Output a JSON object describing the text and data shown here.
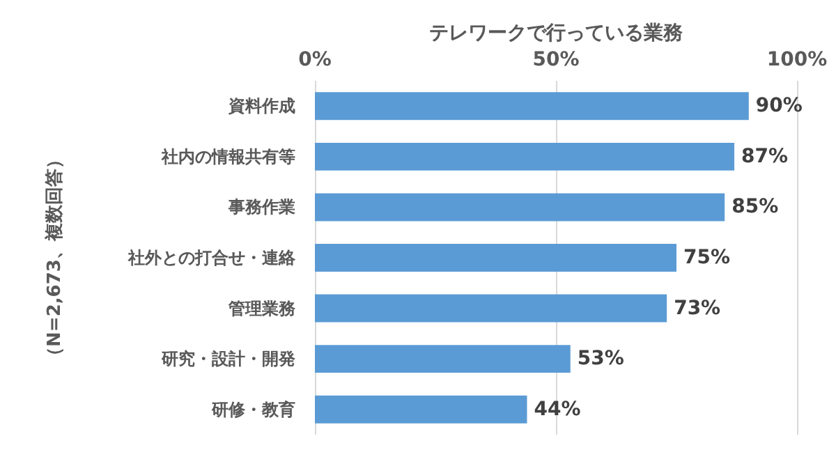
{
  "chart_data": {
    "type": "bar",
    "orientation": "horizontal",
    "xlabel": "テレワークで行っている業務",
    "ylabel": "（N=2,673、複数回答）",
    "categories": [
      "資料作成",
      "社内の情報共有等",
      "事務作業",
      "社外との打合せ・連絡",
      "管理業務",
      "研究・設計・開発",
      "研修・教育"
    ],
    "values": [
      90,
      87,
      85,
      75,
      73,
      53,
      44
    ],
    "value_labels": [
      "90%",
      "87%",
      "85%",
      "75%",
      "73%",
      "53%",
      "44%"
    ],
    "color": "#5b9bd5",
    "xlim": [
      0,
      100
    ],
    "xticks": [
      {
        "value": 0,
        "label": "0%"
      },
      {
        "value": 50,
        "label": "50%"
      },
      {
        "value": 100,
        "label": "100%"
      }
    ],
    "grid": "x"
  }
}
